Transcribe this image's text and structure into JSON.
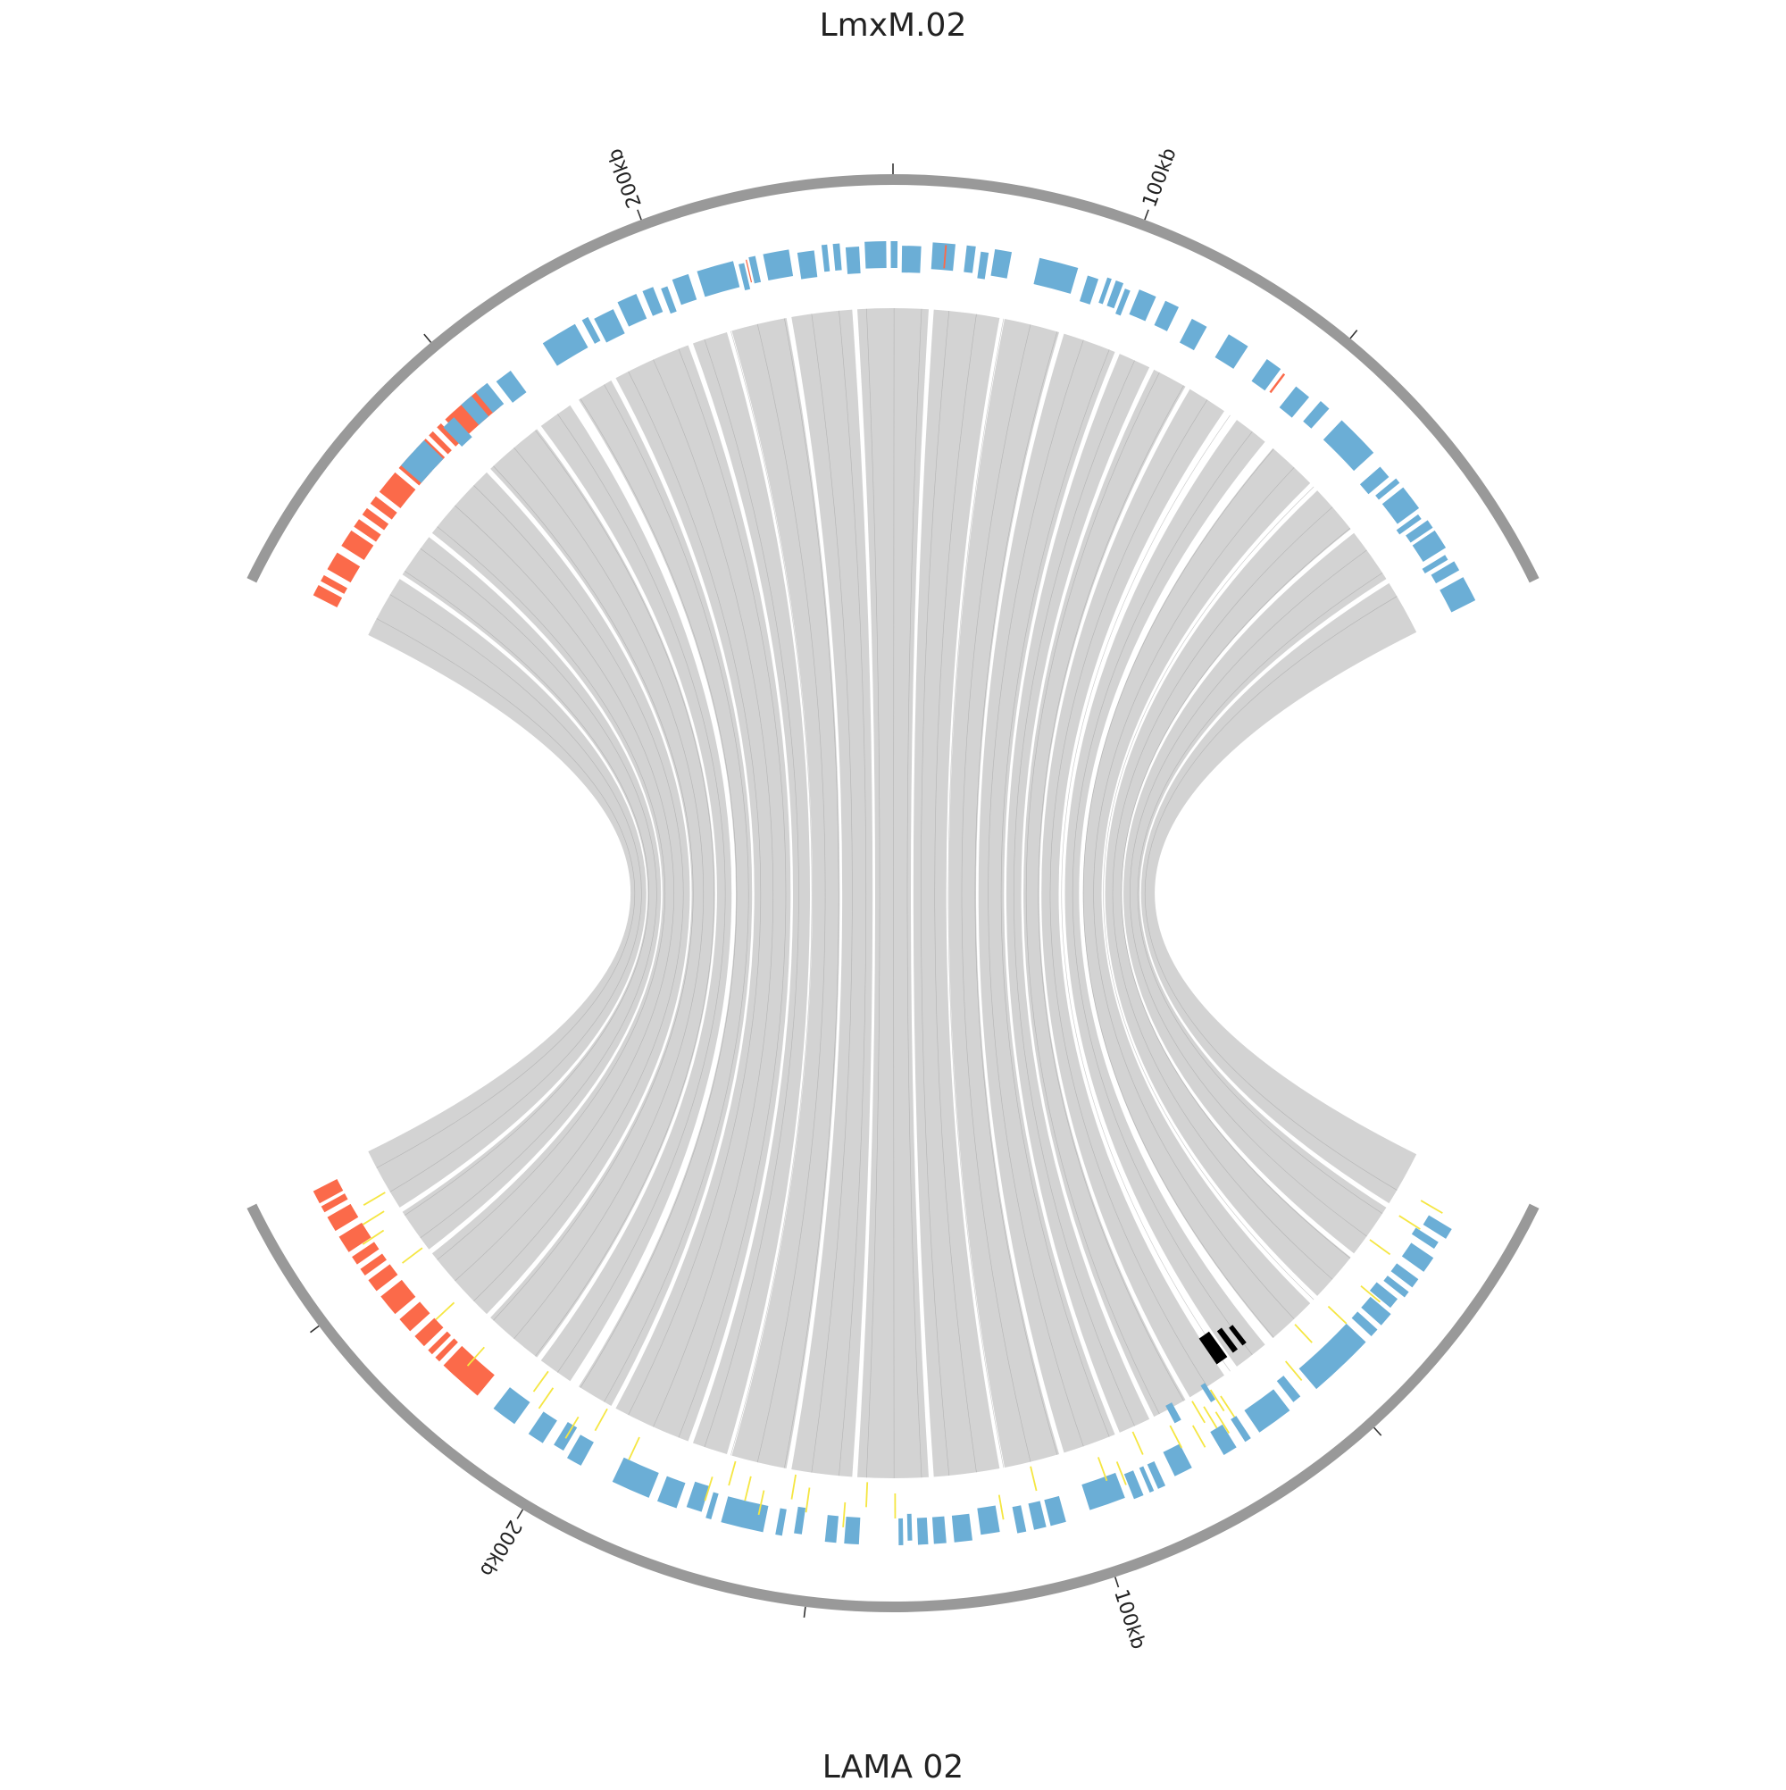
{
  "chromosomes": {
    "top": {
      "name": "LmxM.02",
      "tick_labels": [
        "200kb",
        "100kb"
      ]
    },
    "bottom": {
      "name": "LAMA   02",
      "tick_labels": [
        "200kb",
        "100kb"
      ]
    }
  },
  "colors": {
    "ideogram": "#999999",
    "gene_blue": "#6baed6",
    "gene_red": "#fb6a4a",
    "link": "#d3d3d3",
    "link_line": "#9a9a9a",
    "snp_yellow": "#f5e642",
    "marker_black": "#000000"
  },
  "legend": {
    "visible": false
  }
}
